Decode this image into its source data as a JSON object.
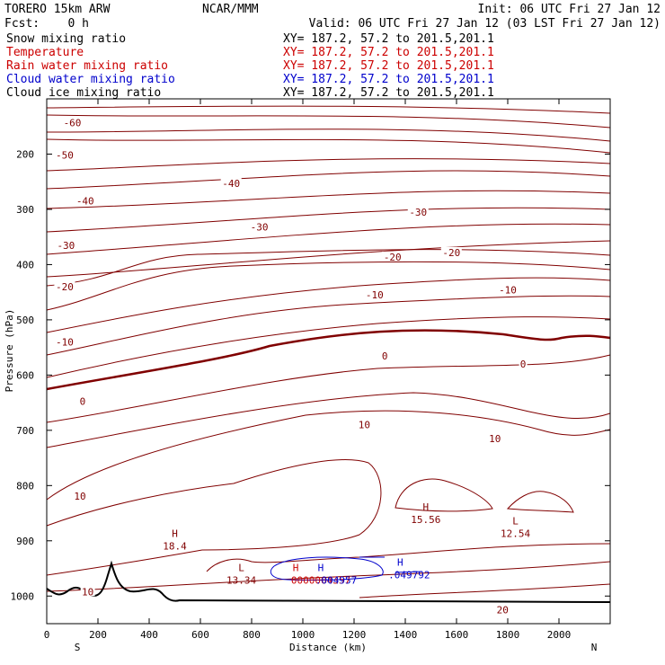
{
  "header": {
    "model": "TORERO  15km ARW",
    "center": "NCAR/MMM",
    "init": "Init: 06 UTC Fri 27 Jan 12",
    "fcst": "Fcst:    0 h",
    "valid": "Valid: 06 UTC Fri 27 Jan 12 (03 LST Fri 27 Jan 12)"
  },
  "fields": [
    {
      "name": "Snow mixing ratio",
      "xy": "XY= 187.2, 57.2 to 201.5,201.1",
      "color": "#000000"
    },
    {
      "name": "Temperature",
      "xy": "XY= 187.2, 57.2 to 201.5,201.1",
      "color": "#cc0000"
    },
    {
      "name": "Rain water mixing ratio",
      "xy": "XY= 187.2, 57.2 to 201.5,201.1",
      "color": "#cc0000"
    },
    {
      "name": "Cloud water mixing ratio",
      "xy": "XY= 187.2, 57.2 to 201.5,201.1",
      "color": "#0000cc"
    },
    {
      "name": "Cloud ice mixing ratio",
      "xy": "XY= 187.2, 57.2 to 201.5,201.1",
      "color": "#000000"
    }
  ],
  "chart_data": {
    "type": "contour-cross-section",
    "xlabel": "Distance (km)",
    "ylabel": "Pressure (hPa)",
    "xlim": [
      0,
      2200
    ],
    "ylim": [
      1050,
      100
    ],
    "x_ticks": [
      "0",
      "200",
      "400",
      "600",
      "800",
      "1000",
      "1200",
      "1400",
      "1600",
      "1800",
      "2000"
    ],
    "y_ticks": [
      "200",
      "300",
      "400",
      "500",
      "600",
      "700",
      "800",
      "900",
      "1000"
    ],
    "end_labels": {
      "left": "S",
      "right": "N"
    },
    "contour_color": "#800000",
    "terrain_color": "#000000",
    "contour_labels": [
      {
        "text": "-60",
        "x": 100,
        "p": 143
      },
      {
        "text": "-50",
        "x": 70,
        "p": 202
      },
      {
        "text": "-40",
        "x": 720,
        "p": 253
      },
      {
        "text": "-40",
        "x": 150,
        "p": 285
      },
      {
        "text": "-30",
        "x": 830,
        "p": 332
      },
      {
        "text": "-30",
        "x": 1450,
        "p": 305
      },
      {
        "text": "-30",
        "x": 75,
        "p": 365
      },
      {
        "text": "-20",
        "x": 1350,
        "p": 386
      },
      {
        "text": "-20",
        "x": 1580,
        "p": 378
      },
      {
        "text": "-20",
        "x": 70,
        "p": 440
      },
      {
        "text": "-10",
        "x": 1280,
        "p": 455
      },
      {
        "text": "-10",
        "x": 1800,
        "p": 446
      },
      {
        "text": "-10",
        "x": 70,
        "p": 540
      },
      {
        "text": "0",
        "x": 1320,
        "p": 565
      },
      {
        "text": "0",
        "x": 1860,
        "p": 580
      },
      {
        "text": "0",
        "x": 140,
        "p": 647
      },
      {
        "text": "10",
        "x": 1240,
        "p": 690
      },
      {
        "text": "10",
        "x": 1750,
        "p": 715
      },
      {
        "text": "10",
        "x": 130,
        "p": 819
      },
      {
        "text": "10",
        "x": 160,
        "p": 992
      },
      {
        "text": "20",
        "x": 1780,
        "p": 1025
      }
    ],
    "extrema": [
      {
        "kind": "H",
        "value": "18.4",
        "x": 500,
        "p": 903,
        "series": "Temperature"
      },
      {
        "kind": "H",
        "value": "15.56",
        "x": 1480,
        "p": 855,
        "series": "Temperature"
      },
      {
        "kind": "L",
        "value": "13.34",
        "x": 760,
        "p": 965,
        "series": "Temperature"
      },
      {
        "kind": "L",
        "value": "12.54",
        "x": 1830,
        "p": 880,
        "series": "Temperature"
      },
      {
        "kind": "H",
        "value": "0.000004357",
        "x": 1000,
        "p": 965,
        "series": "Rain water mixing ratio"
      },
      {
        "kind": "H",
        "value": ".049792",
        "x": 1380,
        "p": 955,
        "series": "Cloud water mixing ratio"
      }
    ],
    "extrema_display": {
      "h_rain_label": "H",
      "h_rain_value": "0000004357",
      "h_cloud_a_label": "H",
      "h_cloud_a_value": ".004957",
      "h_cloud_b_label": "H",
      "h_cloud_b_value": ".049792"
    }
  }
}
